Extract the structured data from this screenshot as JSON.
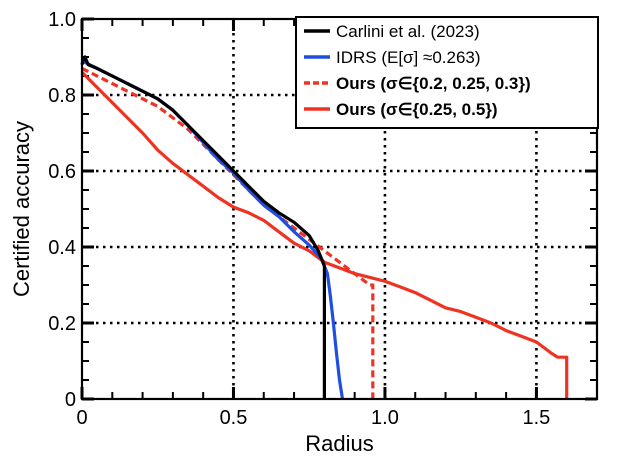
{
  "chart_data": {
    "type": "line",
    "xlabel": "Radius",
    "ylabel": "Certified accuracy",
    "xlim": [
      0,
      1.7
    ],
    "ylim": [
      0,
      1.0
    ],
    "xticks": [
      {
        "value": 0,
        "label": "0"
      },
      {
        "value": 0.5,
        "label": "0.5"
      },
      {
        "value": 1.0,
        "label": "1.0"
      },
      {
        "value": 1.5,
        "label": "1.5"
      }
    ],
    "yticks": [
      {
        "value": 0,
        "label": "0"
      },
      {
        "value": 0.2,
        "label": "0.2"
      },
      {
        "value": 0.4,
        "label": "0.4"
      },
      {
        "value": 0.6,
        "label": "0.6"
      },
      {
        "value": 0.8,
        "label": "0.8"
      },
      {
        "value": 1.0,
        "label": "1.0"
      }
    ],
    "grid": "dotted, at major ticks",
    "legend_position": "top-right",
    "series": [
      {
        "name": "Carlini et al. (2023)",
        "color": "#000000",
        "style": "solid",
        "bold_label": false,
        "points": [
          [
            0,
            0.88
          ],
          [
            0.005,
            0.895
          ],
          [
            0.01,
            0.9
          ],
          [
            0.02,
            0.88
          ],
          [
            0.05,
            0.87
          ],
          [
            0.1,
            0.85
          ],
          [
            0.15,
            0.83
          ],
          [
            0.2,
            0.81
          ],
          [
            0.25,
            0.79
          ],
          [
            0.3,
            0.76
          ],
          [
            0.35,
            0.72
          ],
          [
            0.4,
            0.68
          ],
          [
            0.45,
            0.64
          ],
          [
            0.5,
            0.6
          ],
          [
            0.55,
            0.56
          ],
          [
            0.6,
            0.52
          ],
          [
            0.65,
            0.49
          ],
          [
            0.7,
            0.465
          ],
          [
            0.75,
            0.43
          ],
          [
            0.78,
            0.39
          ],
          [
            0.8,
            0.35
          ],
          [
            0.8,
            0.33
          ],
          [
            0.8,
            0.0
          ]
        ]
      },
      {
        "name": "IDRS (E[σ] ≈0.263)",
        "color": "#1f4fe0",
        "style": "solid",
        "bold_label": false,
        "points": [
          [
            0,
            0.89
          ],
          [
            0.05,
            0.87
          ],
          [
            0.1,
            0.85
          ],
          [
            0.15,
            0.83
          ],
          [
            0.2,
            0.81
          ],
          [
            0.25,
            0.79
          ],
          [
            0.3,
            0.76
          ],
          [
            0.35,
            0.72
          ],
          [
            0.4,
            0.675
          ],
          [
            0.45,
            0.63
          ],
          [
            0.5,
            0.595
          ],
          [
            0.55,
            0.55
          ],
          [
            0.6,
            0.51
          ],
          [
            0.65,
            0.48
          ],
          [
            0.7,
            0.44
          ],
          [
            0.75,
            0.405
          ],
          [
            0.79,
            0.37
          ],
          [
            0.81,
            0.33
          ],
          [
            0.82,
            0.27
          ],
          [
            0.83,
            0.2
          ],
          [
            0.84,
            0.12
          ],
          [
            0.85,
            0.05
          ],
          [
            0.86,
            0.0
          ]
        ]
      },
      {
        "name": "Ours (σ∈{0.2, 0.25, 0.3})",
        "color": "#ee3322",
        "style": "dashed",
        "bold_label": true,
        "points": [
          [
            0,
            0.87
          ],
          [
            0.05,
            0.85
          ],
          [
            0.1,
            0.83
          ],
          [
            0.15,
            0.81
          ],
          [
            0.2,
            0.79
          ],
          [
            0.25,
            0.77
          ],
          [
            0.3,
            0.74
          ],
          [
            0.35,
            0.71
          ],
          [
            0.4,
            0.67
          ],
          [
            0.45,
            0.63
          ],
          [
            0.5,
            0.59
          ],
          [
            0.55,
            0.55
          ],
          [
            0.6,
            0.51
          ],
          [
            0.65,
            0.48
          ],
          [
            0.7,
            0.45
          ],
          [
            0.75,
            0.42
          ],
          [
            0.8,
            0.39
          ],
          [
            0.85,
            0.36
          ],
          [
            0.9,
            0.33
          ],
          [
            0.95,
            0.3
          ],
          [
            0.96,
            0.3
          ],
          [
            0.96,
            0.0
          ]
        ]
      },
      {
        "name": "Ours (σ∈{0.25, 0.5})",
        "color": "#ee3322",
        "style": "solid",
        "bold_label": true,
        "points": [
          [
            0,
            0.86
          ],
          [
            0.05,
            0.82
          ],
          [
            0.1,
            0.78
          ],
          [
            0.15,
            0.74
          ],
          [
            0.2,
            0.7
          ],
          [
            0.25,
            0.655
          ],
          [
            0.3,
            0.62
          ],
          [
            0.35,
            0.59
          ],
          [
            0.4,
            0.56
          ],
          [
            0.45,
            0.53
          ],
          [
            0.5,
            0.505
          ],
          [
            0.55,
            0.49
          ],
          [
            0.6,
            0.47
          ],
          [
            0.65,
            0.44
          ],
          [
            0.7,
            0.41
          ],
          [
            0.75,
            0.39
          ],
          [
            0.8,
            0.36
          ],
          [
            0.85,
            0.345
          ],
          [
            0.9,
            0.33
          ],
          [
            0.95,
            0.32
          ],
          [
            1.0,
            0.31
          ],
          [
            1.05,
            0.295
          ],
          [
            1.1,
            0.28
          ],
          [
            1.15,
            0.26
          ],
          [
            1.2,
            0.24
          ],
          [
            1.25,
            0.23
          ],
          [
            1.3,
            0.215
          ],
          [
            1.35,
            0.2
          ],
          [
            1.4,
            0.18
          ],
          [
            1.45,
            0.165
          ],
          [
            1.5,
            0.15
          ],
          [
            1.55,
            0.12
          ],
          [
            1.57,
            0.11
          ],
          [
            1.6,
            0.11
          ],
          [
            1.6,
            0.0
          ]
        ]
      }
    ]
  }
}
